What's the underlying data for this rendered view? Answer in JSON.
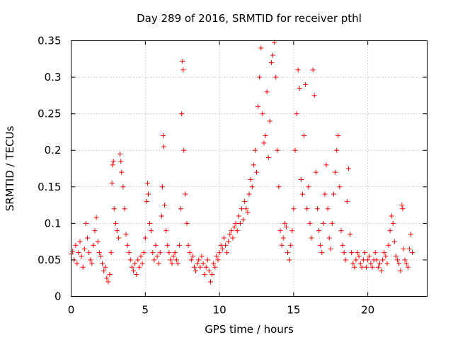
{
  "chart_data": {
    "type": "scatter",
    "title": "Day 289 of 2016, SRMTID for receiver pthl",
    "xlabel": "GPS time / hours",
    "ylabel": "SRMTID / TECUs",
    "xlim": [
      0,
      24
    ],
    "ylim": [
      0,
      0.35
    ],
    "xticks": [
      0,
      5,
      10,
      15,
      20
    ],
    "xtick_labels": [
      "0",
      "5",
      "10",
      "15",
      "20"
    ],
    "yticks": [
      0,
      0.05,
      0.1,
      0.15,
      0.2,
      0.25,
      0.3,
      0.35
    ],
    "ytick_labels": [
      "0",
      "0.05",
      "0.1",
      "0.15",
      "0.2",
      "0.25",
      "0.3",
      "0.35"
    ],
    "grid": true,
    "marker": "+",
    "color": "#ff0000",
    "series": [
      {
        "name": "SRMTID",
        "points": [
          [
            0.0,
            0.058
          ],
          [
            0.1,
            0.062
          ],
          [
            0.2,
            0.05
          ],
          [
            0.3,
            0.07
          ],
          [
            0.4,
            0.045
          ],
          [
            0.5,
            0.06
          ],
          [
            0.6,
            0.075
          ],
          [
            0.7,
            0.055
          ],
          [
            0.8,
            0.04
          ],
          [
            0.9,
            0.065
          ],
          [
            1.0,
            0.1
          ],
          [
            1.1,
            0.08
          ],
          [
            1.2,
            0.06
          ],
          [
            1.3,
            0.05
          ],
          [
            1.4,
            0.045
          ],
          [
            1.5,
            0.07
          ],
          [
            1.6,
            0.09
          ],
          [
            1.7,
            0.108
          ],
          [
            1.8,
            0.075
          ],
          [
            1.9,
            0.06
          ],
          [
            2.0,
            0.055
          ],
          [
            2.1,
            0.045
          ],
          [
            2.2,
            0.035
          ],
          [
            2.3,
            0.04
          ],
          [
            2.4,
            0.025
          ],
          [
            2.5,
            0.02
          ],
          [
            2.6,
            0.03
          ],
          [
            2.7,
            0.06
          ],
          [
            2.75,
            0.155
          ],
          [
            2.8,
            0.18
          ],
          [
            2.85,
            0.185
          ],
          [
            2.9,
            0.12
          ],
          [
            3.0,
            0.1
          ],
          [
            3.1,
            0.09
          ],
          [
            3.2,
            0.08
          ],
          [
            3.3,
            0.195
          ],
          [
            3.35,
            0.185
          ],
          [
            3.4,
            0.17
          ],
          [
            3.5,
            0.15
          ],
          [
            3.6,
            0.12
          ],
          [
            3.7,
            0.085
          ],
          [
            3.8,
            0.07
          ],
          [
            3.9,
            0.06
          ],
          [
            4.0,
            0.05
          ],
          [
            4.1,
            0.04
          ],
          [
            4.2,
            0.035
          ],
          [
            4.3,
            0.045
          ],
          [
            4.4,
            0.03
          ],
          [
            4.5,
            0.05
          ],
          [
            4.6,
            0.04
          ],
          [
            4.7,
            0.055
          ],
          [
            4.8,
            0.045
          ],
          [
            4.9,
            0.06
          ],
          [
            5.0,
            0.08
          ],
          [
            5.1,
            0.13
          ],
          [
            5.15,
            0.155
          ],
          [
            5.2,
            0.14
          ],
          [
            5.3,
            0.1
          ],
          [
            5.4,
            0.09
          ],
          [
            5.5,
            0.06
          ],
          [
            5.6,
            0.05
          ],
          [
            5.7,
            0.07
          ],
          [
            5.8,
            0.055
          ],
          [
            5.9,
            0.045
          ],
          [
            6.0,
            0.06
          ],
          [
            6.1,
            0.11
          ],
          [
            6.15,
            0.15
          ],
          [
            6.2,
            0.22
          ],
          [
            6.25,
            0.205
          ],
          [
            6.3,
            0.125
          ],
          [
            6.4,
            0.09
          ],
          [
            6.5,
            0.07
          ],
          [
            6.6,
            0.06
          ],
          [
            6.7,
            0.05
          ],
          [
            6.8,
            0.045
          ],
          [
            6.9,
            0.055
          ],
          [
            7.0,
            0.06
          ],
          [
            7.1,
            0.05
          ],
          [
            7.2,
            0.045
          ],
          [
            7.3,
            0.07
          ],
          [
            7.4,
            0.12
          ],
          [
            7.45,
            0.25
          ],
          [
            7.5,
            0.322
          ],
          [
            7.55,
            0.31
          ],
          [
            7.6,
            0.2
          ],
          [
            7.7,
            0.14
          ],
          [
            7.8,
            0.1
          ],
          [
            7.9,
            0.07
          ],
          [
            8.0,
            0.06
          ],
          [
            8.1,
            0.05
          ],
          [
            8.2,
            0.055
          ],
          [
            8.3,
            0.04
          ],
          [
            8.4,
            0.035
          ],
          [
            8.5,
            0.045
          ],
          [
            8.6,
            0.05
          ],
          [
            8.7,
            0.04
          ],
          [
            8.8,
            0.055
          ],
          [
            8.9,
            0.045
          ],
          [
            9.0,
            0.03
          ],
          [
            9.1,
            0.04
          ],
          [
            9.2,
            0.05
          ],
          [
            9.3,
            0.035
          ],
          [
            9.4,
            0.02
          ],
          [
            9.5,
            0.03
          ],
          [
            9.6,
            0.045
          ],
          [
            9.7,
            0.04
          ],
          [
            9.8,
            0.055
          ],
          [
            9.9,
            0.05
          ],
          [
            10.0,
            0.06
          ],
          [
            10.1,
            0.07
          ],
          [
            10.2,
            0.065
          ],
          [
            10.3,
            0.08
          ],
          [
            10.4,
            0.07
          ],
          [
            10.5,
            0.06
          ],
          [
            10.6,
            0.075
          ],
          [
            10.7,
            0.085
          ],
          [
            10.8,
            0.09
          ],
          [
            10.9,
            0.08
          ],
          [
            11.0,
            0.095
          ],
          [
            11.1,
            0.1
          ],
          [
            11.2,
            0.09
          ],
          [
            11.3,
            0.11
          ],
          [
            11.4,
            0.1
          ],
          [
            11.5,
            0.12
          ],
          [
            11.6,
            0.105
          ],
          [
            11.7,
            0.13
          ],
          [
            11.8,
            0.12
          ],
          [
            11.9,
            0.115
          ],
          [
            12.0,
            0.14
          ],
          [
            12.1,
            0.16
          ],
          [
            12.2,
            0.15
          ],
          [
            12.3,
            0.18
          ],
          [
            12.4,
            0.2
          ],
          [
            12.5,
            0.17
          ],
          [
            12.6,
            0.26
          ],
          [
            12.7,
            0.3
          ],
          [
            12.8,
            0.34
          ],
          [
            12.9,
            0.25
          ],
          [
            13.0,
            0.21
          ],
          [
            13.1,
            0.22
          ],
          [
            13.2,
            0.28
          ],
          [
            13.3,
            0.19
          ],
          [
            13.4,
            0.24
          ],
          [
            13.5,
            0.32
          ],
          [
            13.6,
            0.33
          ],
          [
            13.7,
            0.348
          ],
          [
            13.8,
            0.3
          ],
          [
            13.9,
            0.2
          ],
          [
            14.0,
            0.15
          ],
          [
            14.1,
            0.09
          ],
          [
            14.2,
            0.07
          ],
          [
            14.3,
            0.08
          ],
          [
            14.4,
            0.1
          ],
          [
            14.5,
            0.095
          ],
          [
            14.6,
            0.06
          ],
          [
            14.7,
            0.05
          ],
          [
            14.8,
            0.07
          ],
          [
            14.9,
            0.09
          ],
          [
            15.0,
            0.12
          ],
          [
            15.1,
            0.2
          ],
          [
            15.2,
            0.25
          ],
          [
            15.3,
            0.31
          ],
          [
            15.4,
            0.285
          ],
          [
            15.5,
            0.16
          ],
          [
            15.6,
            0.14
          ],
          [
            15.7,
            0.22
          ],
          [
            15.8,
            0.29
          ],
          [
            15.9,
            0.12
          ],
          [
            16.0,
            0.15
          ],
          [
            16.1,
            0.1
          ],
          [
            16.2,
            0.08
          ],
          [
            16.3,
            0.31
          ],
          [
            16.4,
            0.275
          ],
          [
            16.5,
            0.17
          ],
          [
            16.6,
            0.12
          ],
          [
            16.7,
            0.09
          ],
          [
            16.8,
            0.07
          ],
          [
            16.9,
            0.06
          ],
          [
            17.0,
            0.1
          ],
          [
            17.1,
            0.14
          ],
          [
            17.2,
            0.18
          ],
          [
            17.3,
            0.12
          ],
          [
            17.4,
            0.08
          ],
          [
            17.5,
            0.065
          ],
          [
            17.6,
            0.1
          ],
          [
            17.7,
            0.14
          ],
          [
            17.8,
            0.17
          ],
          [
            17.9,
            0.2
          ],
          [
            18.0,
            0.22
          ],
          [
            18.1,
            0.15
          ],
          [
            18.2,
            0.09
          ],
          [
            18.3,
            0.07
          ],
          [
            18.4,
            0.06
          ],
          [
            18.5,
            0.05
          ],
          [
            18.6,
            0.13
          ],
          [
            18.7,
            0.175
          ],
          [
            18.8,
            0.085
          ],
          [
            18.9,
            0.06
          ],
          [
            19.0,
            0.045
          ],
          [
            19.1,
            0.04
          ],
          [
            19.2,
            0.05
          ],
          [
            19.3,
            0.06
          ],
          [
            19.4,
            0.055
          ],
          [
            19.5,
            0.045
          ],
          [
            19.6,
            0.04
          ],
          [
            19.7,
            0.05
          ],
          [
            19.8,
            0.06
          ],
          [
            19.9,
            0.04
          ],
          [
            20.0,
            0.05
          ],
          [
            20.1,
            0.055
          ],
          [
            20.2,
            0.045
          ],
          [
            20.3,
            0.04
          ],
          [
            20.4,
            0.05
          ],
          [
            20.5,
            0.06
          ],
          [
            20.6,
            0.05
          ],
          [
            20.7,
            0.04
          ],
          [
            20.8,
            0.045
          ],
          [
            20.9,
            0.035
          ],
          [
            21.0,
            0.05
          ],
          [
            21.1,
            0.06
          ],
          [
            21.2,
            0.055
          ],
          [
            21.3,
            0.045
          ],
          [
            21.4,
            0.07
          ],
          [
            21.5,
            0.09
          ],
          [
            21.6,
            0.11
          ],
          [
            21.7,
            0.1
          ],
          [
            21.8,
            0.075
          ],
          [
            21.9,
            0.055
          ],
          [
            22.0,
            0.05
          ],
          [
            22.1,
            0.045
          ],
          [
            22.2,
            0.035
          ],
          [
            22.3,
            0.125
          ],
          [
            22.35,
            0.12
          ],
          [
            22.4,
            0.065
          ],
          [
            22.5,
            0.05
          ],
          [
            22.6,
            0.045
          ],
          [
            22.7,
            0.04
          ],
          [
            22.8,
            0.065
          ],
          [
            22.9,
            0.085
          ],
          [
            23.0,
            0.06
          ]
        ]
      }
    ]
  }
}
